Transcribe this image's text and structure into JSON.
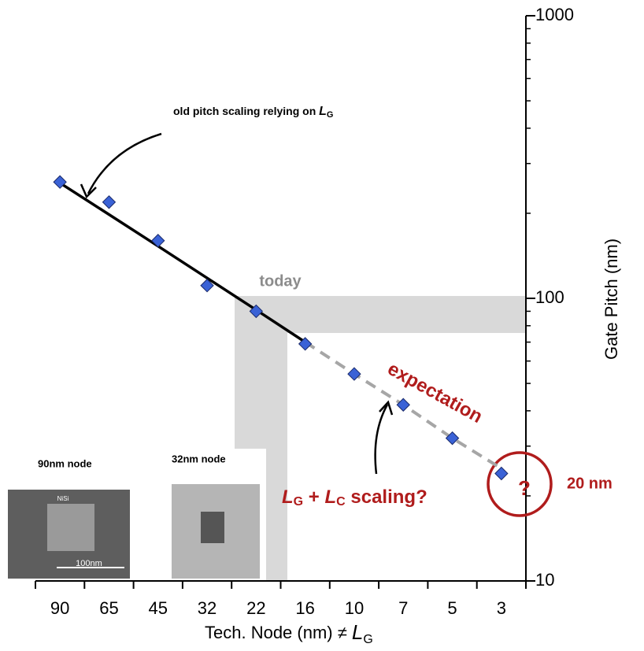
{
  "chart_data": {
    "type": "line",
    "categories": [
      "90",
      "65",
      "45",
      "32",
      "22",
      "16",
      "10",
      "7",
      "5",
      "3"
    ],
    "xlabel": [
      "Tech. Node (nm)  ≠ ",
      "L",
      "G"
    ],
    "ylabel": "Gate Pitch (nm)",
    "ylog": true,
    "ylim": [
      10,
      1000
    ],
    "yticks": [
      10,
      100,
      1000
    ],
    "yminorticks": [
      20,
      30,
      40,
      50,
      60,
      70,
      80,
      90,
      200,
      300,
      400,
      500,
      600,
      700,
      800,
      900
    ],
    "series": [
      {
        "values": [
          258,
          219,
          160,
          111,
          90,
          69,
          54,
          42,
          32,
          24
        ],
        "color": "#3a62d6",
        "marker": "diamond"
      },
      {
        "values": [
          256,
          198,
          153,
          118,
          91,
          70,
          null,
          null,
          null,
          null
        ],
        "color": "#000000",
        "dash": false
      },
      {
        "values": [
          null,
          null,
          null,
          null,
          null,
          70,
          54,
          42,
          32,
          25
        ],
        "color": "#a6a6a6",
        "dash": true
      }
    ],
    "annotations": {
      "old_pitch": [
        "old pitch scaling relying on ",
        "L",
        "G"
      ],
      "today": "today",
      "expectation": "expectation",
      "scaling": [
        "L",
        "G",
        " + ",
        "L",
        "C",
        " scaling?"
      ],
      "target_mark": "?",
      "target": "20 nm",
      "image_90": "90nm node",
      "image_32": "32nm node",
      "scale_bar": "100nm",
      "nisi": "NiSi"
    }
  }
}
